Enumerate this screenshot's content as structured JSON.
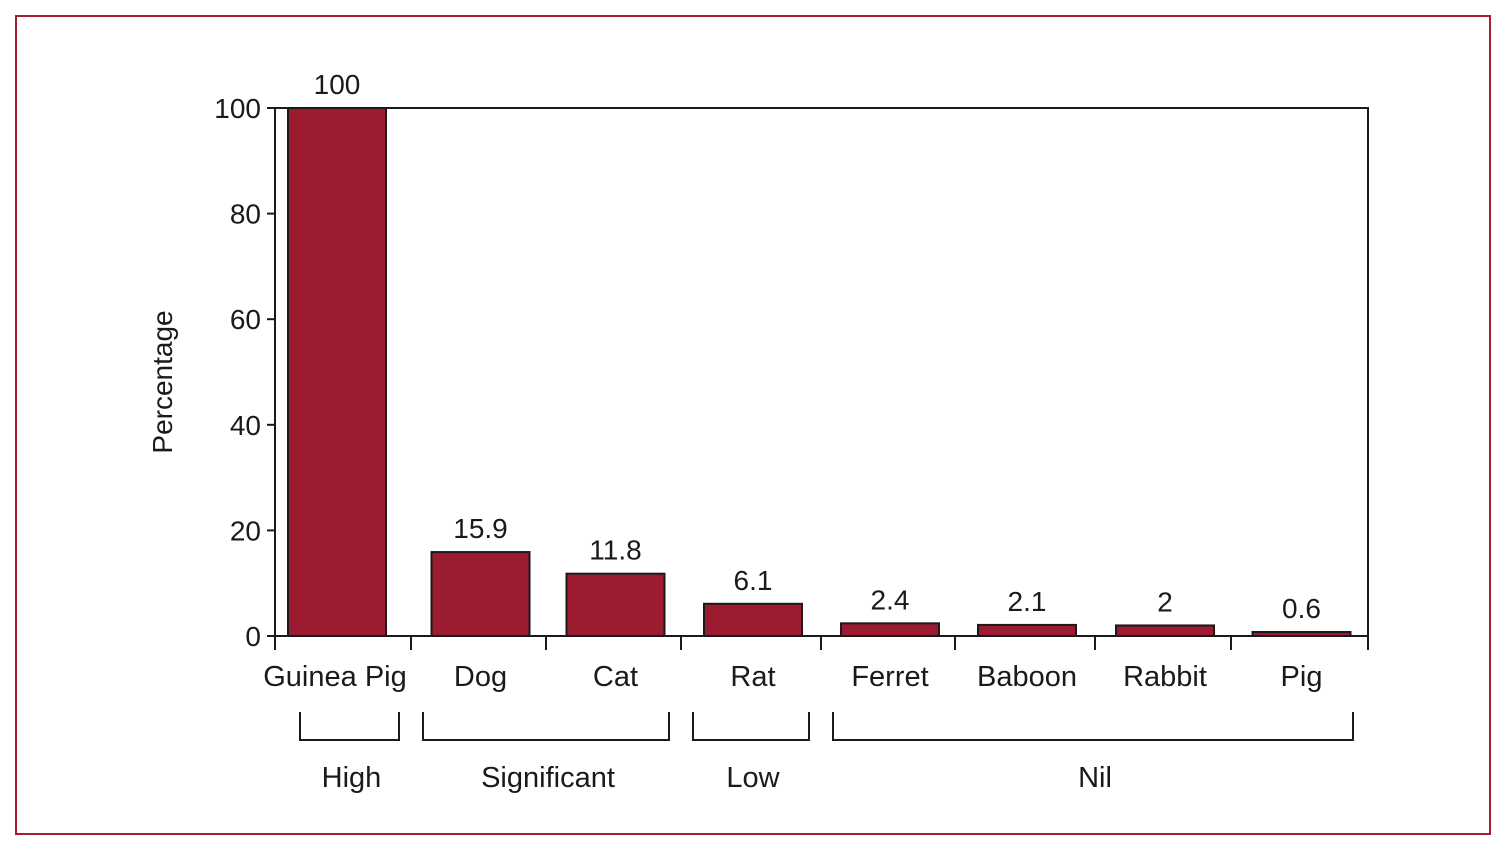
{
  "chart_data": {
    "type": "bar",
    "title": "",
    "xlabel": "",
    "ylabel": "Percentage",
    "ylim": [
      0,
      100
    ],
    "yticks": [
      0,
      20,
      40,
      60,
      80,
      100
    ],
    "grid": false,
    "bar_color": "#9b1c31",
    "categories": [
      "Guinea Pig",
      "Dog",
      "Cat",
      "Rat",
      "Ferret",
      "Baboon",
      "Rabbit",
      "Pig"
    ],
    "values": [
      100,
      15.9,
      11.8,
      6.1,
      2.4,
      2.1,
      2,
      0.6
    ],
    "value_labels": [
      "100",
      "15.9",
      "11.8",
      "6.1",
      "2.4",
      "2.1",
      "2",
      "0.6"
    ],
    "groups": [
      {
        "label": "High",
        "categories": [
          "Guinea Pig"
        ]
      },
      {
        "label": "Significant",
        "categories": [
          "Dog",
          "Cat"
        ]
      },
      {
        "label": "Low",
        "categories": [
          "Rat"
        ]
      },
      {
        "label": "Nil",
        "categories": [
          "Ferret",
          "Baboon",
          "Rabbit",
          "Pig"
        ]
      }
    ]
  }
}
